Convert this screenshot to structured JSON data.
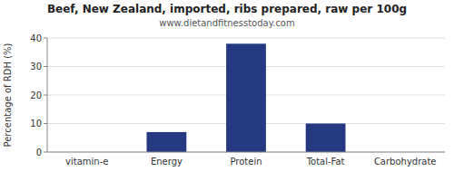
{
  "chart_data": {
    "type": "bar",
    "title": "Beef, New Zealand, imported, ribs prepared, raw per 100g",
    "subtitle": "www.dietandfitnesstoday.com",
    "categories": [
      "vitamin-e",
      "Energy",
      "Protein",
      "Total-Fat",
      "Carbohydrate"
    ],
    "values": [
      0,
      7,
      38,
      10,
      0
    ],
    "color": "#253882",
    "ylabel": "Percentage of RDH (%)",
    "ylim": [
      0,
      40
    ],
    "yticks": [
      0,
      10,
      20,
      30,
      40
    ],
    "grid": true
  }
}
